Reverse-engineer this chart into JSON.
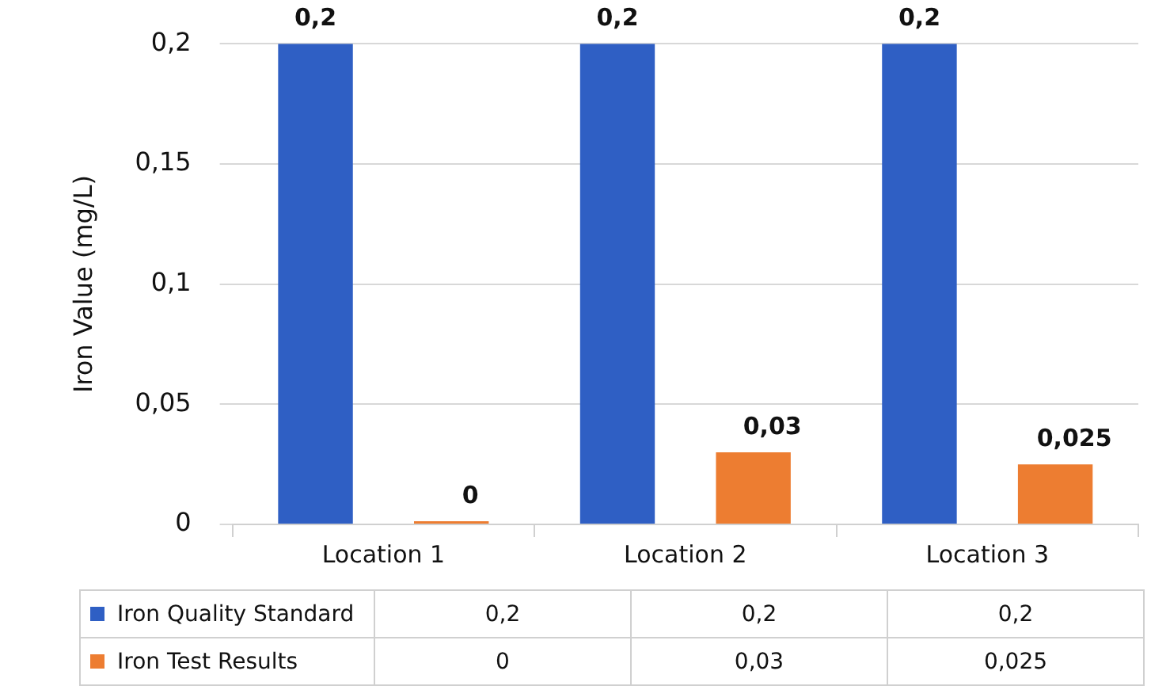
{
  "chart_data": {
    "type": "bar",
    "ylabel": "Iron Value (mg/L)",
    "categories": [
      "Location 1",
      "Location 2",
      "Location 3"
    ],
    "series": [
      {
        "name": "Iron Quality Standard",
        "color": "#2f5fc4",
        "values": [
          0.2,
          0.2,
          0.2
        ],
        "value_labels": [
          "0,2",
          "0,2",
          "0,2"
        ]
      },
      {
        "name": "Iron Test Results",
        "color": "#ed7d31",
        "values": [
          0,
          0.03,
          0.025
        ],
        "value_labels": [
          "0",
          "0,03",
          "0,025"
        ]
      }
    ],
    "ylim": [
      0,
      0.2
    ],
    "yticks": [
      {
        "value": 0,
        "label": "0"
      },
      {
        "value": 0.05,
        "label": "0,05"
      },
      {
        "value": 0.1,
        "label": "0,1"
      },
      {
        "value": 0.15,
        "label": "0,15"
      },
      {
        "value": 0.2,
        "label": "0,2"
      }
    ],
    "grid": "y",
    "legend": "bottom"
  }
}
